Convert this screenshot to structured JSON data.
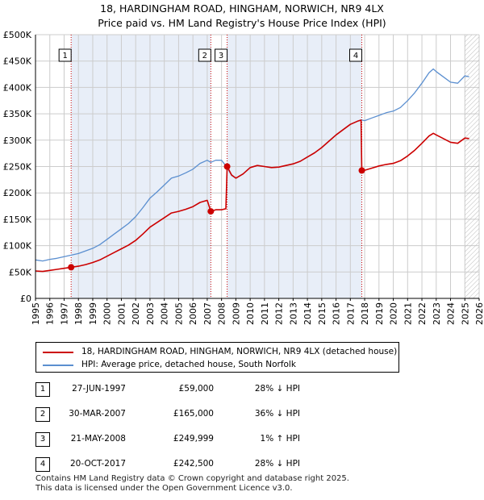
{
  "title_line1": "18, HARDINGHAM ROAD, HINGHAM, NORWICH, NR9 4LX",
  "title_line2": "Price paid vs. HM Land Registry's House Price Index (HPI)",
  "colors": {
    "red": "#cc0000",
    "blue": "#5b8fd0",
    "shade": "#e8eef8",
    "grid": "#cccccc"
  },
  "chart_data": {
    "type": "line",
    "title": "Price paid vs. HM Land Registry's House Price Index (HPI)",
    "xlim": [
      1995,
      2026
    ],
    "ylim": [
      0,
      500000
    ],
    "y_ticks": [
      0,
      50000,
      100000,
      150000,
      200000,
      250000,
      300000,
      350000,
      400000,
      450000,
      500000
    ],
    "y_tick_labels": [
      "£0",
      "£50K",
      "£100K",
      "£150K",
      "£200K",
      "£250K",
      "£300K",
      "£350K",
      "£400K",
      "£450K",
      "£500K"
    ],
    "x_ticks": [
      1995,
      1996,
      1997,
      1998,
      1999,
      2000,
      2001,
      2002,
      2003,
      2004,
      2005,
      2006,
      2007,
      2008,
      2009,
      2010,
      2011,
      2012,
      2013,
      2014,
      2015,
      2016,
      2017,
      2018,
      2019,
      2020,
      2021,
      2022,
      2023,
      2024,
      2025,
      2026
    ],
    "x_tick_labels": [
      "1995",
      "1996",
      "1997",
      "1998",
      "1999",
      "2000",
      "2001",
      "2002",
      "2003",
      "2004",
      "2005",
      "2006",
      "2007",
      "2008",
      "2009",
      "2010",
      "2011",
      "2012",
      "2013",
      "2014",
      "2015",
      "2016",
      "2017",
      "2018",
      "2019",
      "2020",
      "2021",
      "2022",
      "2023",
      "2024",
      "2025",
      "2026"
    ],
    "shaded_spans": [
      [
        1997.49,
        2007.25
      ],
      [
        2008.39,
        2017.8
      ]
    ],
    "hatched_after": 2025.0,
    "series": [
      {
        "name": "HPI: Average price, detached house, South Norfolk",
        "color": "#5b8fd0",
        "x": [
          1995.0,
          1995.5,
          1996.0,
          1996.5,
          1997.0,
          1997.49,
          1998.0,
          1998.5,
          1999.0,
          1999.5,
          2000.0,
          2000.5,
          2001.0,
          2001.5,
          2002.0,
          2002.5,
          2003.0,
          2003.5,
          2004.0,
          2004.5,
          2005.0,
          2005.5,
          2006.0,
          2006.5,
          2007.0,
          2007.25,
          2007.6,
          2008.0,
          2008.39,
          2008.7,
          2009.0,
          2009.5,
          2010.0,
          2010.5,
          2011.0,
          2011.5,
          2012.0,
          2012.5,
          2013.0,
          2013.5,
          2014.0,
          2014.5,
          2015.0,
          2015.5,
          2016.0,
          2016.5,
          2017.0,
          2017.5,
          2017.8,
          2018.0,
          2018.5,
          2019.0,
          2019.5,
          2020.0,
          2020.5,
          2021.0,
          2021.5,
          2022.0,
          2022.5,
          2022.8,
          2023.0,
          2023.5,
          2024.0,
          2024.5,
          2025.0,
          2025.3
        ],
        "values": [
          73000,
          71000,
          74000,
          76000,
          79000,
          82000,
          85000,
          90000,
          95000,
          102000,
          112000,
          122000,
          132000,
          142000,
          155000,
          172000,
          190000,
          202000,
          215000,
          228000,
          232000,
          238000,
          245000,
          256000,
          262000,
          258000,
          262000,
          262000,
          248000,
          233000,
          228000,
          236000,
          248000,
          252000,
          250000,
          248000,
          249000,
          252000,
          255000,
          260000,
          268000,
          276000,
          286000,
          298000,
          310000,
          320000,
          330000,
          336000,
          338000,
          337000,
          342000,
          347000,
          352000,
          355000,
          362000,
          375000,
          390000,
          408000,
          428000,
          435000,
          430000,
          420000,
          410000,
          408000,
          422000,
          420000
        ]
      },
      {
        "name": "18, HARDINGHAM ROAD, HINGHAM, NORWICH, NR9 4LX (detached house)",
        "color": "#cc0000",
        "x": [
          1995.0,
          1995.5,
          1996.0,
          1996.5,
          1997.0,
          1997.49,
          1998.0,
          1998.5,
          1999.0,
          1999.5,
          2000.0,
          2000.5,
          2001.0,
          2001.5,
          2002.0,
          2002.5,
          2003.0,
          2003.5,
          2004.0,
          2004.5,
          2005.0,
          2005.5,
          2006.0,
          2006.5,
          2007.0,
          2007.25,
          2007.6,
          2008.0,
          2008.3,
          2008.39,
          2008.7,
          2009.0,
          2009.5,
          2010.0,
          2010.5,
          2011.0,
          2011.5,
          2012.0,
          2012.5,
          2013.0,
          2013.5,
          2014.0,
          2014.5,
          2015.0,
          2015.5,
          2016.0,
          2016.5,
          2017.0,
          2017.5,
          2017.75,
          2017.8,
          2018.0,
          2018.5,
          2019.0,
          2019.5,
          2020.0,
          2020.5,
          2021.0,
          2021.5,
          2022.0,
          2022.5,
          2022.8,
          2023.0,
          2023.5,
          2024.0,
          2024.5,
          2025.0,
          2025.3
        ],
        "values": [
          52000,
          51000,
          53000,
          55000,
          57000,
          59000,
          61000,
          64000,
          68000,
          73000,
          80000,
          87000,
          94000,
          101000,
          110000,
          122000,
          135000,
          144000,
          153000,
          162000,
          165000,
          169000,
          174000,
          182000,
          186000,
          165000,
          168000,
          168000,
          170000,
          249999,
          234000,
          228000,
          236000,
          248000,
          252000,
          250000,
          248000,
          249000,
          252000,
          255000,
          260000,
          268000,
          276000,
          286000,
          298000,
          310000,
          320000,
          330000,
          336000,
          338000,
          242500,
          243000,
          247000,
          251000,
          254000,
          256000,
          261000,
          270000,
          281000,
          294000,
          308000,
          313000,
          310000,
          303000,
          296000,
          294000,
          304000,
          303000
        ]
      }
    ],
    "markers": [
      {
        "label": "1",
        "x": 1997.49,
        "y": 59000
      },
      {
        "label": "2",
        "x": 2007.25,
        "y": 165000
      },
      {
        "label": "3",
        "x": 2008.39,
        "y": 249999
      },
      {
        "label": "4",
        "x": 2017.8,
        "y": 242500
      }
    ]
  },
  "legend": {
    "red_label": "18, HARDINGHAM ROAD, HINGHAM, NORWICH, NR9 4LX (detached house)",
    "blue_label": "HPI: Average price, detached house, South Norfolk"
  },
  "transactions": [
    {
      "num": "1",
      "date": "27-JUN-1997",
      "price": "£59,000",
      "hpi": "28% ↓ HPI"
    },
    {
      "num": "2",
      "date": "30-MAR-2007",
      "price": "£165,000",
      "hpi": "36% ↓ HPI"
    },
    {
      "num": "3",
      "date": "21-MAY-2008",
      "price": "£249,999",
      "hpi": "1% ↑ HPI"
    },
    {
      "num": "4",
      "date": "20-OCT-2017",
      "price": "£242,500",
      "hpi": "28% ↓ HPI"
    }
  ],
  "footer": {
    "line1": "Contains HM Land Registry data © Crown copyright and database right 2025.",
    "line2": "This data is licensed under the Open Government Licence v3.0."
  }
}
